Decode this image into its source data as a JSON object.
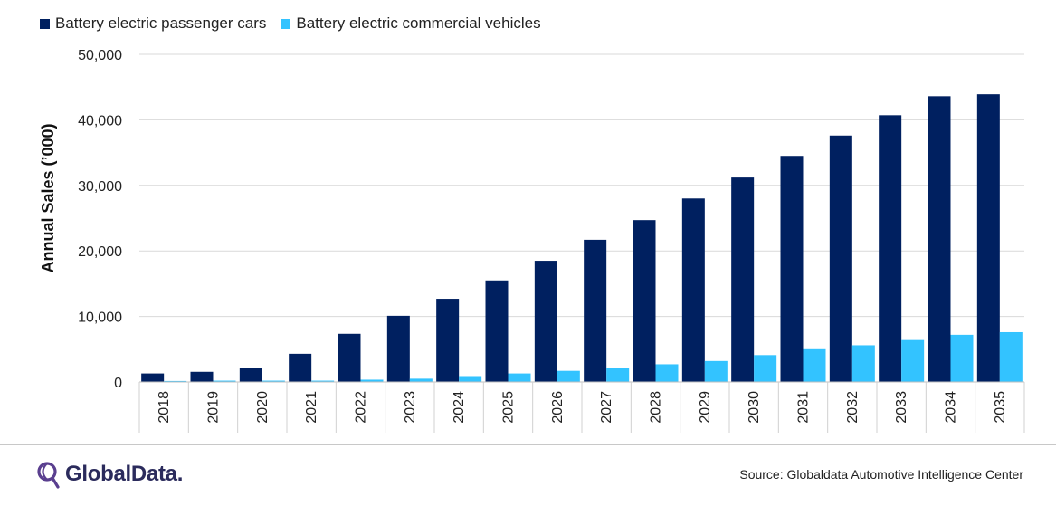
{
  "chart_data": {
    "type": "bar",
    "title": "",
    "xlabel": "",
    "ylabel": "Annual Sales (’000)",
    "ylim": [
      0,
      50000
    ],
    "yticks": [
      0,
      10000,
      20000,
      30000,
      40000,
      50000
    ],
    "ytick_labels": [
      "0",
      "10,000",
      "20,000",
      "30,000",
      "40,000",
      "50,000"
    ],
    "grid": true,
    "legend_position": "top-left",
    "categories": [
      "2018",
      "2019",
      "2020",
      "2021",
      "2022",
      "2023",
      "2024",
      "2025",
      "2026",
      "2027",
      "2028",
      "2029",
      "2030",
      "2031",
      "2032",
      "2033",
      "2034",
      "2035"
    ],
    "series": [
      {
        "name": "Battery electric passenger cars",
        "color": "#002060",
        "values": [
          1300,
          1550,
          2100,
          4300,
          7350,
          10100,
          12700,
          15500,
          18500,
          21700,
          24700,
          28000,
          31200,
          34500,
          37600,
          40700,
          43600,
          43900
        ]
      },
      {
        "name": "Battery electric commercial vehicles",
        "color": "#33C3FF",
        "values": [
          150,
          200,
          200,
          200,
          350,
          500,
          900,
          1300,
          1700,
          2100,
          2700,
          3200,
          4100,
          5000,
          5600,
          6400,
          7200,
          7600
        ]
      }
    ]
  },
  "footer": {
    "brand": "GlobalData.",
    "brand_icon": "globaldata-logo-icon",
    "source": "Source: Globaldata Automotive Intelligence Center"
  }
}
